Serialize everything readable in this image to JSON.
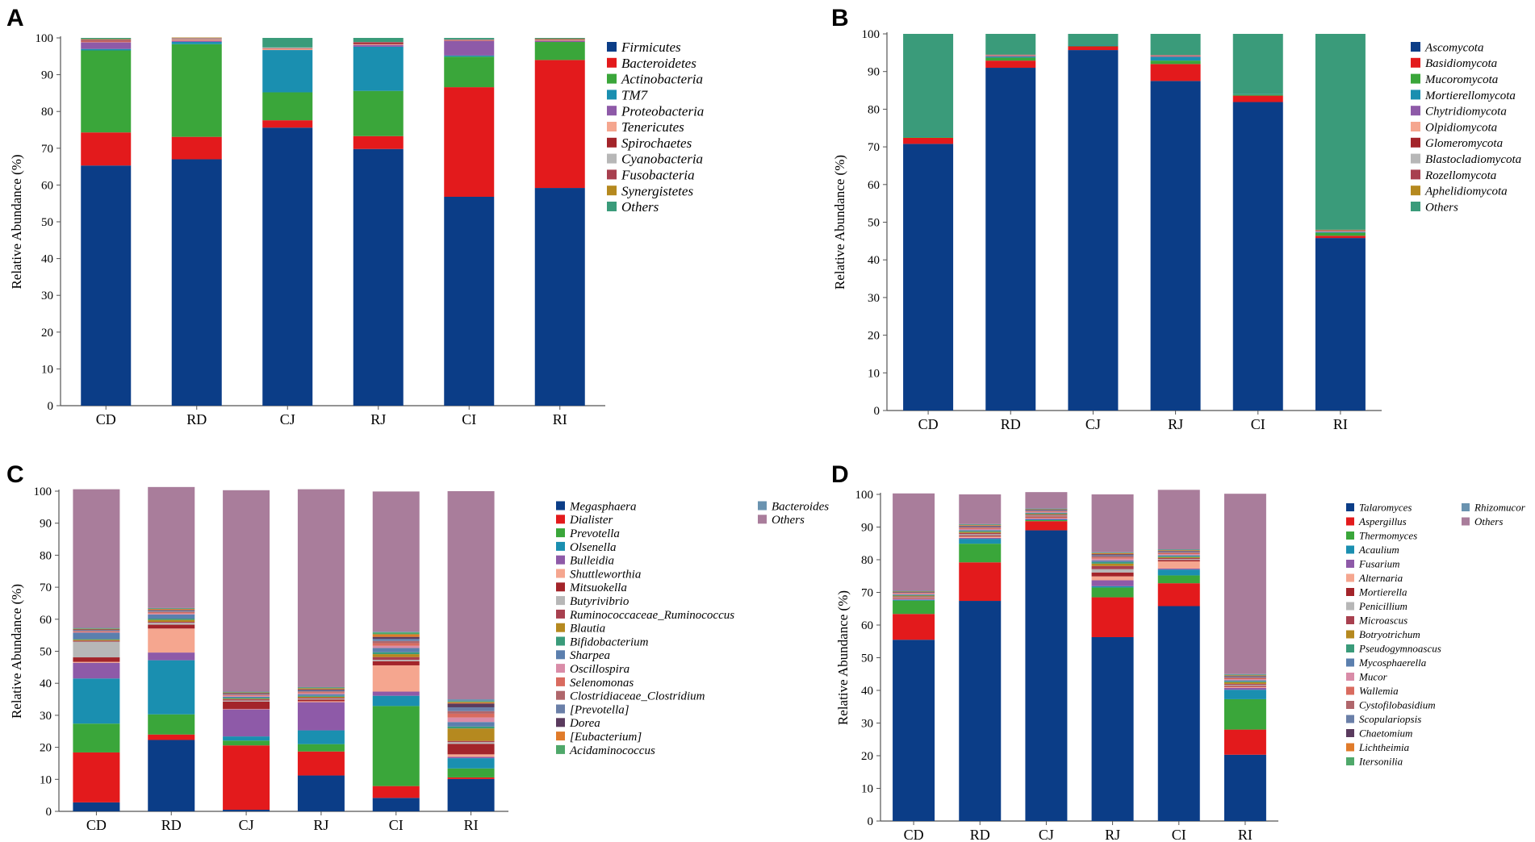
{
  "chart_data": [
    {
      "panel": "A",
      "type": "bar",
      "stacked": true,
      "ylabel": "Relative Abundance (%)",
      "ylim": [
        0,
        100
      ],
      "yticks": [
        "0",
        "10",
        "20",
        "30",
        "40",
        "50",
        "60",
        "70",
        "80",
        "90",
        "100"
      ],
      "categories": [
        "CD",
        "RD",
        "CJ",
        "RJ",
        "CI",
        "RI"
      ],
      "series": [
        {
          "name": "Firmicutes",
          "color": "#0b3d87",
          "values": [
            65.3,
            67.0,
            75.6,
            69.8,
            56.8,
            59.2
          ]
        },
        {
          "name": "Bacteroidetes",
          "color": "#e31a1c",
          "values": [
            9.0,
            6.1,
            2.0,
            3.5,
            29.8,
            34.8
          ]
        },
        {
          "name": "Actinobacteria",
          "color": "#3aa63a",
          "values": [
            22.3,
            25.2,
            7.6,
            12.3,
            8.3,
            4.9
          ]
        },
        {
          "name": "TM7",
          "color": "#1a8fb0",
          "values": [
            0.4,
            0.6,
            11.5,
            12.0,
            0.3,
            0.0
          ]
        },
        {
          "name": "Proteobacteria",
          "color": "#8e5aa8",
          "values": [
            1.8,
            0.3,
            0.0,
            0.5,
            4.0,
            0.3
          ]
        },
        {
          "name": "Tenericutes",
          "color": "#f5a68f",
          "values": [
            0.2,
            0.3,
            0.4,
            0.2,
            0.1,
            0.1
          ]
        },
        {
          "name": "Spirochaetes",
          "color": "#a3242a",
          "values": [
            0.3,
            0.1,
            0.1,
            0.4,
            0.1,
            0.1
          ]
        },
        {
          "name": "Cyanobacteria",
          "color": "#b7b7b7",
          "values": [
            0.1,
            0.3,
            0.2,
            0.1,
            0.1,
            0.1
          ]
        },
        {
          "name": "Fusobacteria",
          "color": "#a8404f",
          "values": [
            0.2,
            0.1,
            0.0,
            0.1,
            0.1,
            0.2
          ]
        },
        {
          "name": "Synergistetes",
          "color": "#b5891f",
          "values": [
            0.1,
            0.1,
            0.0,
            0.0,
            0.0,
            0.1
          ]
        },
        {
          "name": "Others",
          "color": "#3a9b7a",
          "values": [
            0.3,
            0.0,
            2.6,
            1.1,
            0.4,
            0.2
          ]
        }
      ],
      "legend_columns": [
        [
          "Firmicutes",
          "Bacteroidetes",
          "Actinobacteria",
          "TM7",
          "Proteobacteria",
          "Tenericutes",
          "Spirochaetes",
          "Cyanobacteria",
          "Fusobacteria",
          "Synergistetes",
          "Others"
        ]
      ]
    },
    {
      "panel": "B",
      "type": "bar",
      "stacked": true,
      "ylabel": "Relative Abundance (%)",
      "ylim": [
        0,
        100
      ],
      "yticks": [
        "0",
        "10",
        "20",
        "30",
        "40",
        "50",
        "60",
        "70",
        "80",
        "90",
        "100"
      ],
      "categories": [
        "CD",
        "RD",
        "CJ",
        "RJ",
        "CI",
        "RI"
      ],
      "series": [
        {
          "name": "Ascomycota",
          "color": "#0b3d87",
          "values": [
            70.8,
            91.0,
            95.7,
            87.5,
            81.9,
            45.8
          ]
        },
        {
          "name": "Basidiomycota",
          "color": "#e31a1c",
          "values": [
            1.6,
            1.9,
            1.0,
            4.5,
            1.7,
            0.6
          ]
        },
        {
          "name": "Mucoromycota",
          "color": "#3aa63a",
          "values": [
            0.2,
            0.8,
            0.1,
            0.9,
            0.3,
            0.8
          ]
        },
        {
          "name": "Mortierellomycota",
          "color": "#1a8fb0",
          "values": [
            0.1,
            0.3,
            0.1,
            1.0,
            0.1,
            0.2
          ]
        },
        {
          "name": "Chytridiomycota",
          "color": "#8e5aa8",
          "values": [
            0.0,
            0.1,
            0.0,
            0.1,
            0.0,
            0.1
          ]
        },
        {
          "name": "Olpidiomycota",
          "color": "#f5a68f",
          "values": [
            0.0,
            0.1,
            0.0,
            0.1,
            0.0,
            0.1
          ]
        },
        {
          "name": "Glomeromycota",
          "color": "#a3242a",
          "values": [
            0.0,
            0.1,
            0.0,
            0.1,
            0.0,
            0.1
          ]
        },
        {
          "name": "Blastocladiomycota",
          "color": "#b7b7b7",
          "values": [
            0.0,
            0.1,
            0.0,
            0.1,
            0.0,
            0.1
          ]
        },
        {
          "name": "Rozellomycota",
          "color": "#a8404f",
          "values": [
            0.0,
            0.1,
            0.0,
            0.1,
            0.0,
            0.1
          ]
        },
        {
          "name": "Aphelidiomycota",
          "color": "#b5891f",
          "values": [
            0.0,
            0.0,
            0.0,
            0.0,
            0.0,
            0.1
          ]
        },
        {
          "name": "Others",
          "color": "#3a9b7a",
          "values": [
            27.3,
            5.5,
            3.1,
            5.6,
            16.0,
            52.0
          ]
        }
      ],
      "legend_columns": [
        [
          "Ascomycota",
          "Basidiomycota",
          "Mucoromycota",
          "Mortierellomycota",
          "Chytridiomycota",
          "Olpidiomycota",
          "Glomeromycota",
          "Blastocladiomycota",
          "Rozellomycota",
          "Aphelidiomycota",
          "Others"
        ]
      ]
    },
    {
      "panel": "C",
      "type": "bar",
      "stacked": true,
      "ylabel": "Relative Abundance (%)",
      "ylim": [
        0,
        100
      ],
      "yticks": [
        "0",
        "10",
        "20",
        "30",
        "40",
        "50",
        "60",
        "70",
        "80",
        "90",
        "100"
      ],
      "categories": [
        "CD",
        "RD",
        "CJ",
        "RJ",
        "CI",
        "RI"
      ],
      "series": [
        {
          "name": "Megasphaera",
          "color": "#0b3d87",
          "values": [
            2.8,
            22.3,
            0.5,
            11.2,
            4.2,
            10.1
          ]
        },
        {
          "name": "Dialister",
          "color": "#e31a1c",
          "values": [
            15.6,
            1.7,
            20.1,
            7.5,
            3.7,
            0.5
          ]
        },
        {
          "name": "Prevotella",
          "color": "#3aa63a",
          "values": [
            9.0,
            6.3,
            1.5,
            2.3,
            25.0,
            2.8
          ]
        },
        {
          "name": "Olsenella",
          "color": "#1a8fb0",
          "values": [
            14.1,
            16.9,
            1.3,
            4.3,
            3.2,
            3.2
          ]
        },
        {
          "name": "Bulleidia",
          "color": "#8e5aa8",
          "values": [
            4.9,
            2.4,
            8.5,
            8.8,
            1.3,
            0.4
          ]
        },
        {
          "name": "Shuttleworthia",
          "color": "#f5a68f",
          "values": [
            0.3,
            7.5,
            0.1,
            0.3,
            8.2,
            0.8
          ]
        },
        {
          "name": "Mitsuokella",
          "color": "#a3242a",
          "values": [
            1.4,
            1.2,
            2.3,
            0.5,
            1.3,
            3.3
          ]
        },
        {
          "name": "Butyrivibrio",
          "color": "#b7b7b7",
          "values": [
            4.9,
            0.6,
            0.3,
            0.3,
            0.4,
            0.5
          ]
        },
        {
          "name": "Ruminococcaceae_Ruminococcus",
          "color": "#a8404f",
          "values": [
            0.3,
            0.3,
            0.4,
            0.3,
            0.9,
            0.4
          ]
        },
        {
          "name": "Blautia",
          "color": "#b5891f",
          "values": [
            0.3,
            0.6,
            0.2,
            0.3,
            0.9,
            3.9
          ]
        },
        {
          "name": "Bifidobacterium",
          "color": "#3a9b7a",
          "values": [
            0.2,
            0.4,
            0.3,
            0.3,
            0.6,
            0.6
          ]
        },
        {
          "name": "Sharpea",
          "color": "#5b7fae",
          "values": [
            2.0,
            1.3,
            0.3,
            0.5,
            1.3,
            1.4
          ]
        },
        {
          "name": "Oscillospira",
          "color": "#d98ca8",
          "values": [
            0.2,
            0.3,
            0.3,
            0.3,
            0.7,
            1.4
          ]
        },
        {
          "name": "Selenomonas",
          "color": "#d96b5f",
          "values": [
            0.2,
            0.3,
            0.2,
            0.3,
            0.8,
            1.2
          ]
        },
        {
          "name": "Clostridiaceae_Clostridium",
          "color": "#b0666b",
          "values": [
            0.2,
            0.3,
            0.2,
            0.3,
            0.7,
            0.8
          ]
        },
        {
          "name": "[Prevotella]",
          "color": "#6a7fa8",
          "values": [
            0.2,
            0.3,
            0.2,
            0.3,
            0.7,
            1.2
          ]
        },
        {
          "name": "Dorea",
          "color": "#5a3b5e",
          "values": [
            0.2,
            0.2,
            0.2,
            0.3,
            0.6,
            1.2
          ]
        },
        {
          "name": "[Eubacterium]",
          "color": "#e07b2a",
          "values": [
            0.2,
            0.3,
            0.2,
            0.3,
            0.8,
            0.4
          ]
        },
        {
          "name": "Acidaminococcus",
          "color": "#4fa86a",
          "values": [
            0.2,
            0.2,
            0.2,
            0.3,
            0.6,
            0.3
          ]
        },
        {
          "name": "Bacteroides",
          "color": "#6a93b0",
          "values": [
            0.1,
            0.1,
            0.1,
            0.1,
            0.2,
            0.6
          ]
        },
        {
          "name": "Others",
          "color": "#a97d9b",
          "values": [
            43.3,
            37.8,
            62.9,
            61.8,
            43.8,
            65.0
          ]
        }
      ],
      "legend_columns": [
        [
          "Megasphaera",
          "Dialister",
          "Prevotella",
          "Olsenella",
          "Bulleidia",
          "Shuttleworthia",
          "Mitsuokella",
          "Butyrivibrio",
          "Ruminococcaceae_Ruminococcus",
          "Blautia",
          "Bifidobacterium",
          "Sharpea",
          "Oscillospira",
          "Selenomonas",
          "Clostridiaceae_Clostridium",
          "[Prevotella]",
          "Dorea",
          "[Eubacterium]",
          "Acidaminococcus"
        ],
        [
          "Bacteroides",
          "Others"
        ]
      ]
    },
    {
      "panel": "D",
      "type": "bar",
      "stacked": true,
      "ylabel": "Relative Abundance (%)",
      "ylim": [
        0,
        100
      ],
      "yticks": [
        "0",
        "10",
        "20",
        "30",
        "40",
        "50",
        "60",
        "70",
        "80",
        "90",
        "100"
      ],
      "categories": [
        "CD",
        "RD",
        "CJ",
        "RJ",
        "CI",
        "RI"
      ],
      "series": [
        {
          "name": "Talaromyces",
          "color": "#0b3d87",
          "values": [
            55.5,
            67.4,
            89.0,
            56.3,
            65.8,
            20.3
          ]
        },
        {
          "name": "Aspergillus",
          "color": "#e31a1c",
          "values": [
            7.9,
            11.8,
            2.8,
            12.2,
            7.0,
            7.7
          ]
        },
        {
          "name": "Thermomyces",
          "color": "#3aa63a",
          "values": [
            4.1,
            5.7,
            0.3,
            3.0,
            2.4,
            9.3
          ]
        },
        {
          "name": "Acaulium",
          "color": "#1a8fb0",
          "values": [
            0.2,
            1.5,
            0.2,
            0.4,
            1.8,
            2.9
          ]
        },
        {
          "name": "Fusarium",
          "color": "#8e5aa8",
          "values": [
            0.3,
            0.3,
            0.3,
            1.8,
            0.3,
            0.6
          ]
        },
        {
          "name": "Alternaria",
          "color": "#f5a68f",
          "values": [
            0.2,
            0.4,
            0.3,
            1.2,
            2.2,
            0.3
          ]
        },
        {
          "name": "Mortierella",
          "color": "#a3242a",
          "values": [
            0.2,
            0.3,
            0.3,
            1.2,
            0.4,
            0.3
          ]
        },
        {
          "name": "Penicillium",
          "color": "#b7b7b7",
          "values": [
            0.2,
            0.4,
            0.3,
            1.0,
            0.3,
            0.3
          ]
        },
        {
          "name": "Microascus",
          "color": "#a8404f",
          "values": [
            0.2,
            0.4,
            0.3,
            1.0,
            0.3,
            0.3
          ]
        },
        {
          "name": "Botryotrichum",
          "color": "#b5891f",
          "values": [
            0.2,
            0.3,
            0.2,
            0.7,
            0.3,
            0.5
          ]
        },
        {
          "name": "Pseudogymnoascus",
          "color": "#3a9b7a",
          "values": [
            0.2,
            0.3,
            0.2,
            0.5,
            0.3,
            0.3
          ]
        },
        {
          "name": "Mycosphaerella",
          "color": "#5b7fae",
          "values": [
            0.2,
            0.3,
            0.2,
            0.5,
            0.3,
            0.3
          ]
        },
        {
          "name": "Mucor",
          "color": "#d98ca8",
          "values": [
            0.2,
            0.3,
            0.2,
            0.5,
            0.3,
            0.3
          ]
        },
        {
          "name": "Wallemia",
          "color": "#d96b5f",
          "values": [
            0.2,
            0.3,
            0.2,
            0.4,
            0.3,
            0.3
          ]
        },
        {
          "name": "Cystofilobasidium",
          "color": "#b0666b",
          "values": [
            0.2,
            0.3,
            0.2,
            0.4,
            0.3,
            0.3
          ]
        },
        {
          "name": "Scopulariopsis",
          "color": "#6a7fa8",
          "values": [
            0.1,
            0.2,
            0.2,
            0.3,
            0.2,
            0.2
          ]
        },
        {
          "name": "Chaetomium",
          "color": "#5a3b5e",
          "values": [
            0.1,
            0.2,
            0.2,
            0.3,
            0.2,
            0.2
          ]
        },
        {
          "name": "Lichtheimia",
          "color": "#e07b2a",
          "values": [
            0.1,
            0.2,
            0.1,
            0.3,
            0.2,
            0.2
          ]
        },
        {
          "name": "Itersonilia",
          "color": "#4fa86a",
          "values": [
            0.1,
            0.2,
            0.1,
            0.2,
            0.2,
            0.2
          ]
        },
        {
          "name": "Rhizomucor",
          "color": "#6a93b0",
          "values": [
            0.1,
            0.1,
            0.1,
            0.1,
            0.1,
            0.2
          ]
        },
        {
          "name": "Others",
          "color": "#a97d9b",
          "values": [
            29.8,
            9.1,
            5.0,
            17.7,
            18.2,
            55.2
          ]
        }
      ],
      "legend_columns": [
        [
          "Talaromyces",
          "Aspergillus",
          "Thermomyces",
          "Acaulium",
          "Fusarium",
          "Alternaria",
          "Mortierella",
          "Penicillium",
          "Microascus",
          "Botryotrichum",
          "Pseudogymnoascus",
          "Mycosphaerella",
          "Mucor",
          "Wallemia",
          "Cystofilobasidium",
          "Scopulariopsis",
          "Chaetomium",
          "Lichtheimia",
          "Itersonilia"
        ],
        [
          "Rhizomucor",
          "Others"
        ]
      ]
    }
  ]
}
